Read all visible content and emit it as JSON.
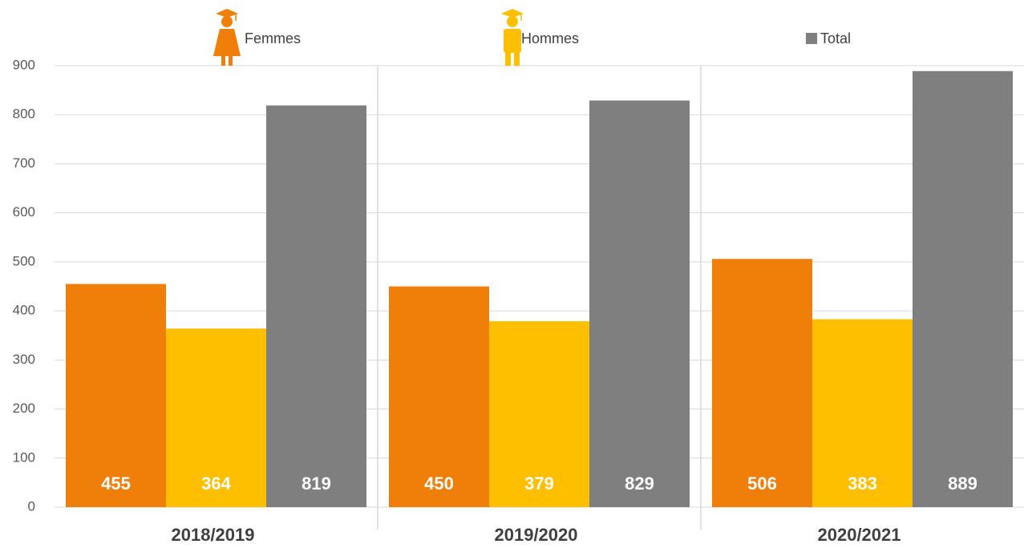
{
  "chart_data": {
    "type": "bar",
    "categories": [
      "2018/2019",
      "2019/2020",
      "2020/2021"
    ],
    "series": [
      {
        "name": "Femmes",
        "color": "#f07f09",
        "values": [
          455,
          450,
          506
        ]
      },
      {
        "name": "Hommes",
        "color": "#fdbf00",
        "values": [
          364,
          379,
          383
        ]
      },
      {
        "name": "Total",
        "color": "#7f7f7f",
        "values": [
          819,
          829,
          889
        ]
      }
    ],
    "ylim": [
      0,
      900
    ],
    "yticks": [
      0,
      100,
      200,
      300,
      400,
      500,
      600,
      700,
      800,
      900
    ],
    "grid": true
  }
}
